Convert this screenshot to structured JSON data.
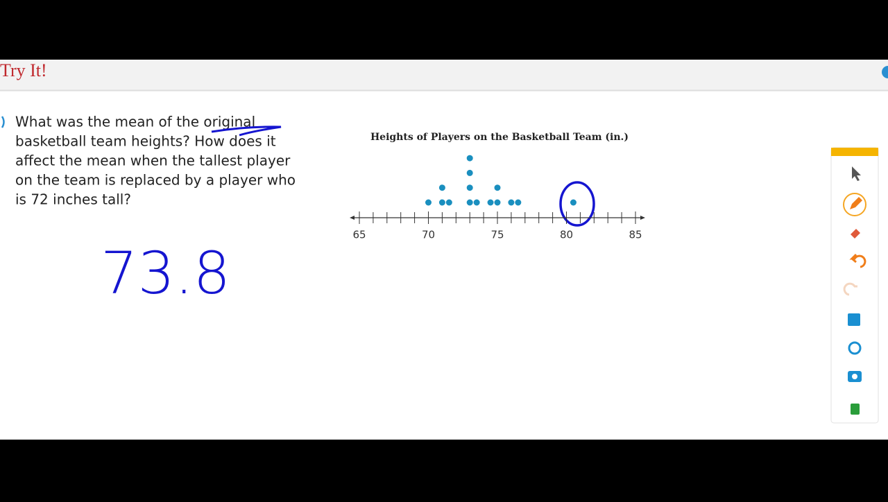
{
  "header": {
    "title": "Try It!"
  },
  "question": {
    "lines": [
      "What was the mean of the original",
      "basketball team heights? How does it",
      "affect the mean when the tallest player",
      "on the team is replaced by a player who",
      "is 72 inches tall?"
    ]
  },
  "handwriting": {
    "answer": "73.8"
  },
  "chart_data": {
    "type": "dot",
    "title": "Heights of Players on the Basketball Team (in.)",
    "x": [
      70,
      71,
      71.5,
      73,
      73.5,
      74.5,
      75,
      76,
      76.5,
      80.5
    ],
    "values": [
      1,
      2,
      1,
      4,
      1,
      1,
      2,
      1,
      1,
      1
    ],
    "color": "#1a8fbf",
    "xlim": [
      65,
      85
    ],
    "xticks": [
      65,
      70,
      75,
      80,
      85
    ],
    "xminor_step": 1
  }
}
